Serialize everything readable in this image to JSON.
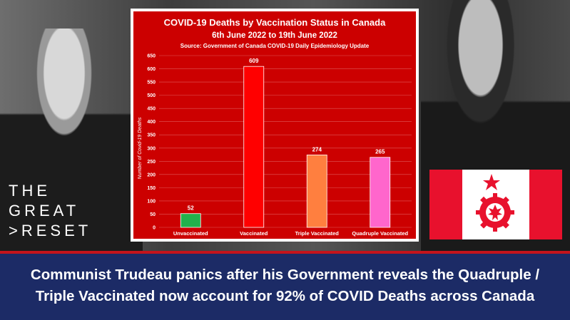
{
  "logo": {
    "line1": "THE",
    "line2": "GREAT",
    "line3": "RESET"
  },
  "headline": {
    "line1": "Communist Trudeau panics after his Government reveals the Quadruple /",
    "line2": "Triple Vaccinated now account for 92% of COVID Deaths across Canada"
  },
  "colors": {
    "chart_background": "#cc0000",
    "banner_background": "#1c2b66",
    "divider": "#c4141c",
    "flag_red": "#e8112d"
  },
  "chart_data": {
    "type": "bar",
    "title": "COVID-19 Deaths by Vaccination Status in Canada",
    "subtitle": "6th June 2022 to 19th June 2022",
    "source": "Source: Government of Canada COVID-19 Daily Epidemiology Update",
    "ylabel": "Number of Covid-19 Deaths",
    "xlabel": "",
    "ylim": [
      0,
      650
    ],
    "yticks": [
      0,
      50,
      100,
      150,
      200,
      250,
      300,
      350,
      400,
      450,
      500,
      550,
      600,
      650
    ],
    "grid": true,
    "categories": [
      "Unvaccinated",
      "Vaccinated",
      "Triple Vaccinated",
      "Quadruple Vaccinated"
    ],
    "values": [
      52,
      609,
      274,
      265
    ],
    "bar_colors": [
      "#22b14c",
      "#ff0000",
      "#ff7f3f",
      "#ff66cc"
    ]
  }
}
